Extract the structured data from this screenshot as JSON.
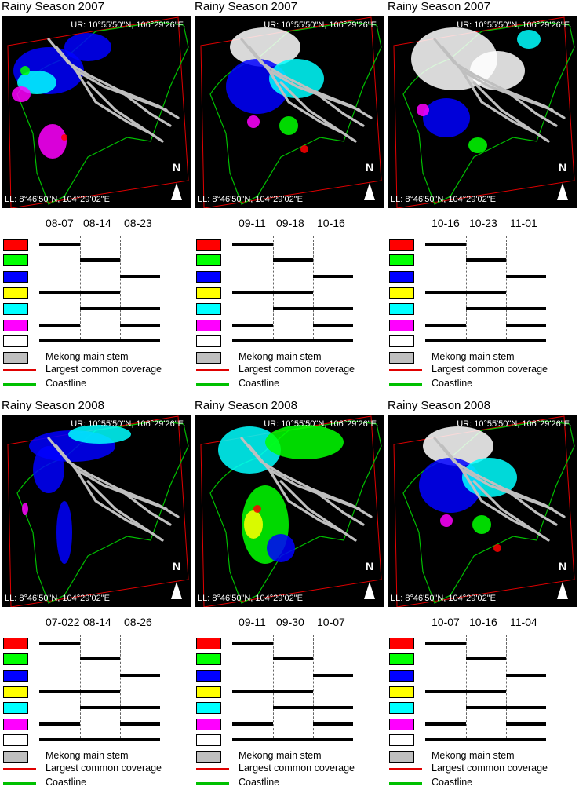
{
  "colors": {
    "red": "#ff0000",
    "green": "#00ff00",
    "blue": "#0000ff",
    "yellow": "#ffff00",
    "cyan": "#00ffff",
    "magenta": "#ff00ff",
    "white": "#ffffff",
    "mekong": "#bfbfbf",
    "coverage_line": "#e00000",
    "coastline_line": "#00c000"
  },
  "labels": {
    "ur": "UR: 10°55'50\"N, 106°29'26\"E.",
    "ll": "LL: 8°46'50\"N, 104°29'02\"E",
    "north": "N",
    "mekong": "Mekong main stem",
    "coverage": "Largest common coverage",
    "coastline": "Coastline"
  },
  "swatch_order": [
    "red",
    "green",
    "blue",
    "yellow",
    "cyan",
    "magenta",
    "white"
  ],
  "panels": [
    {
      "title": "Rainy Season 2007",
      "dates": [
        "08-07",
        "08-14",
        "08-23"
      ],
      "dominant": "blue-cyan"
    },
    {
      "title": "Rainy Season 2007",
      "dates": [
        "09-11",
        "09-18",
        "10-16"
      ],
      "dominant": "white-blue"
    },
    {
      "title": "Rainy Season 2007",
      "dates": [
        "10-16",
        "10-23",
        "11-01"
      ],
      "dominant": "white"
    },
    {
      "title": "Rainy Season 2008",
      "dates": [
        "07-022",
        "08-14",
        "08-26"
      ],
      "dominant": "blue"
    },
    {
      "title": "Rainy Season 2008",
      "dates": [
        "09-11",
        "09-30",
        "10-07"
      ],
      "dominant": "cyan-green"
    },
    {
      "title": "Rainy Season 2008",
      "dates": [
        "10-07",
        "10-16",
        "11-04"
      ],
      "dominant": "white-blue"
    }
  ],
  "bar_spans": [
    [
      0,
      1
    ],
    [
      1,
      2
    ],
    [
      2,
      3
    ],
    [
      0,
      2
    ],
    [
      1,
      3
    ],
    [
      0,
      1
    ],
    [
      0,
      3
    ]
  ],
  "bar_spans_second_segment": [
    null,
    null,
    null,
    null,
    null,
    [
      2,
      3
    ],
    null
  ]
}
